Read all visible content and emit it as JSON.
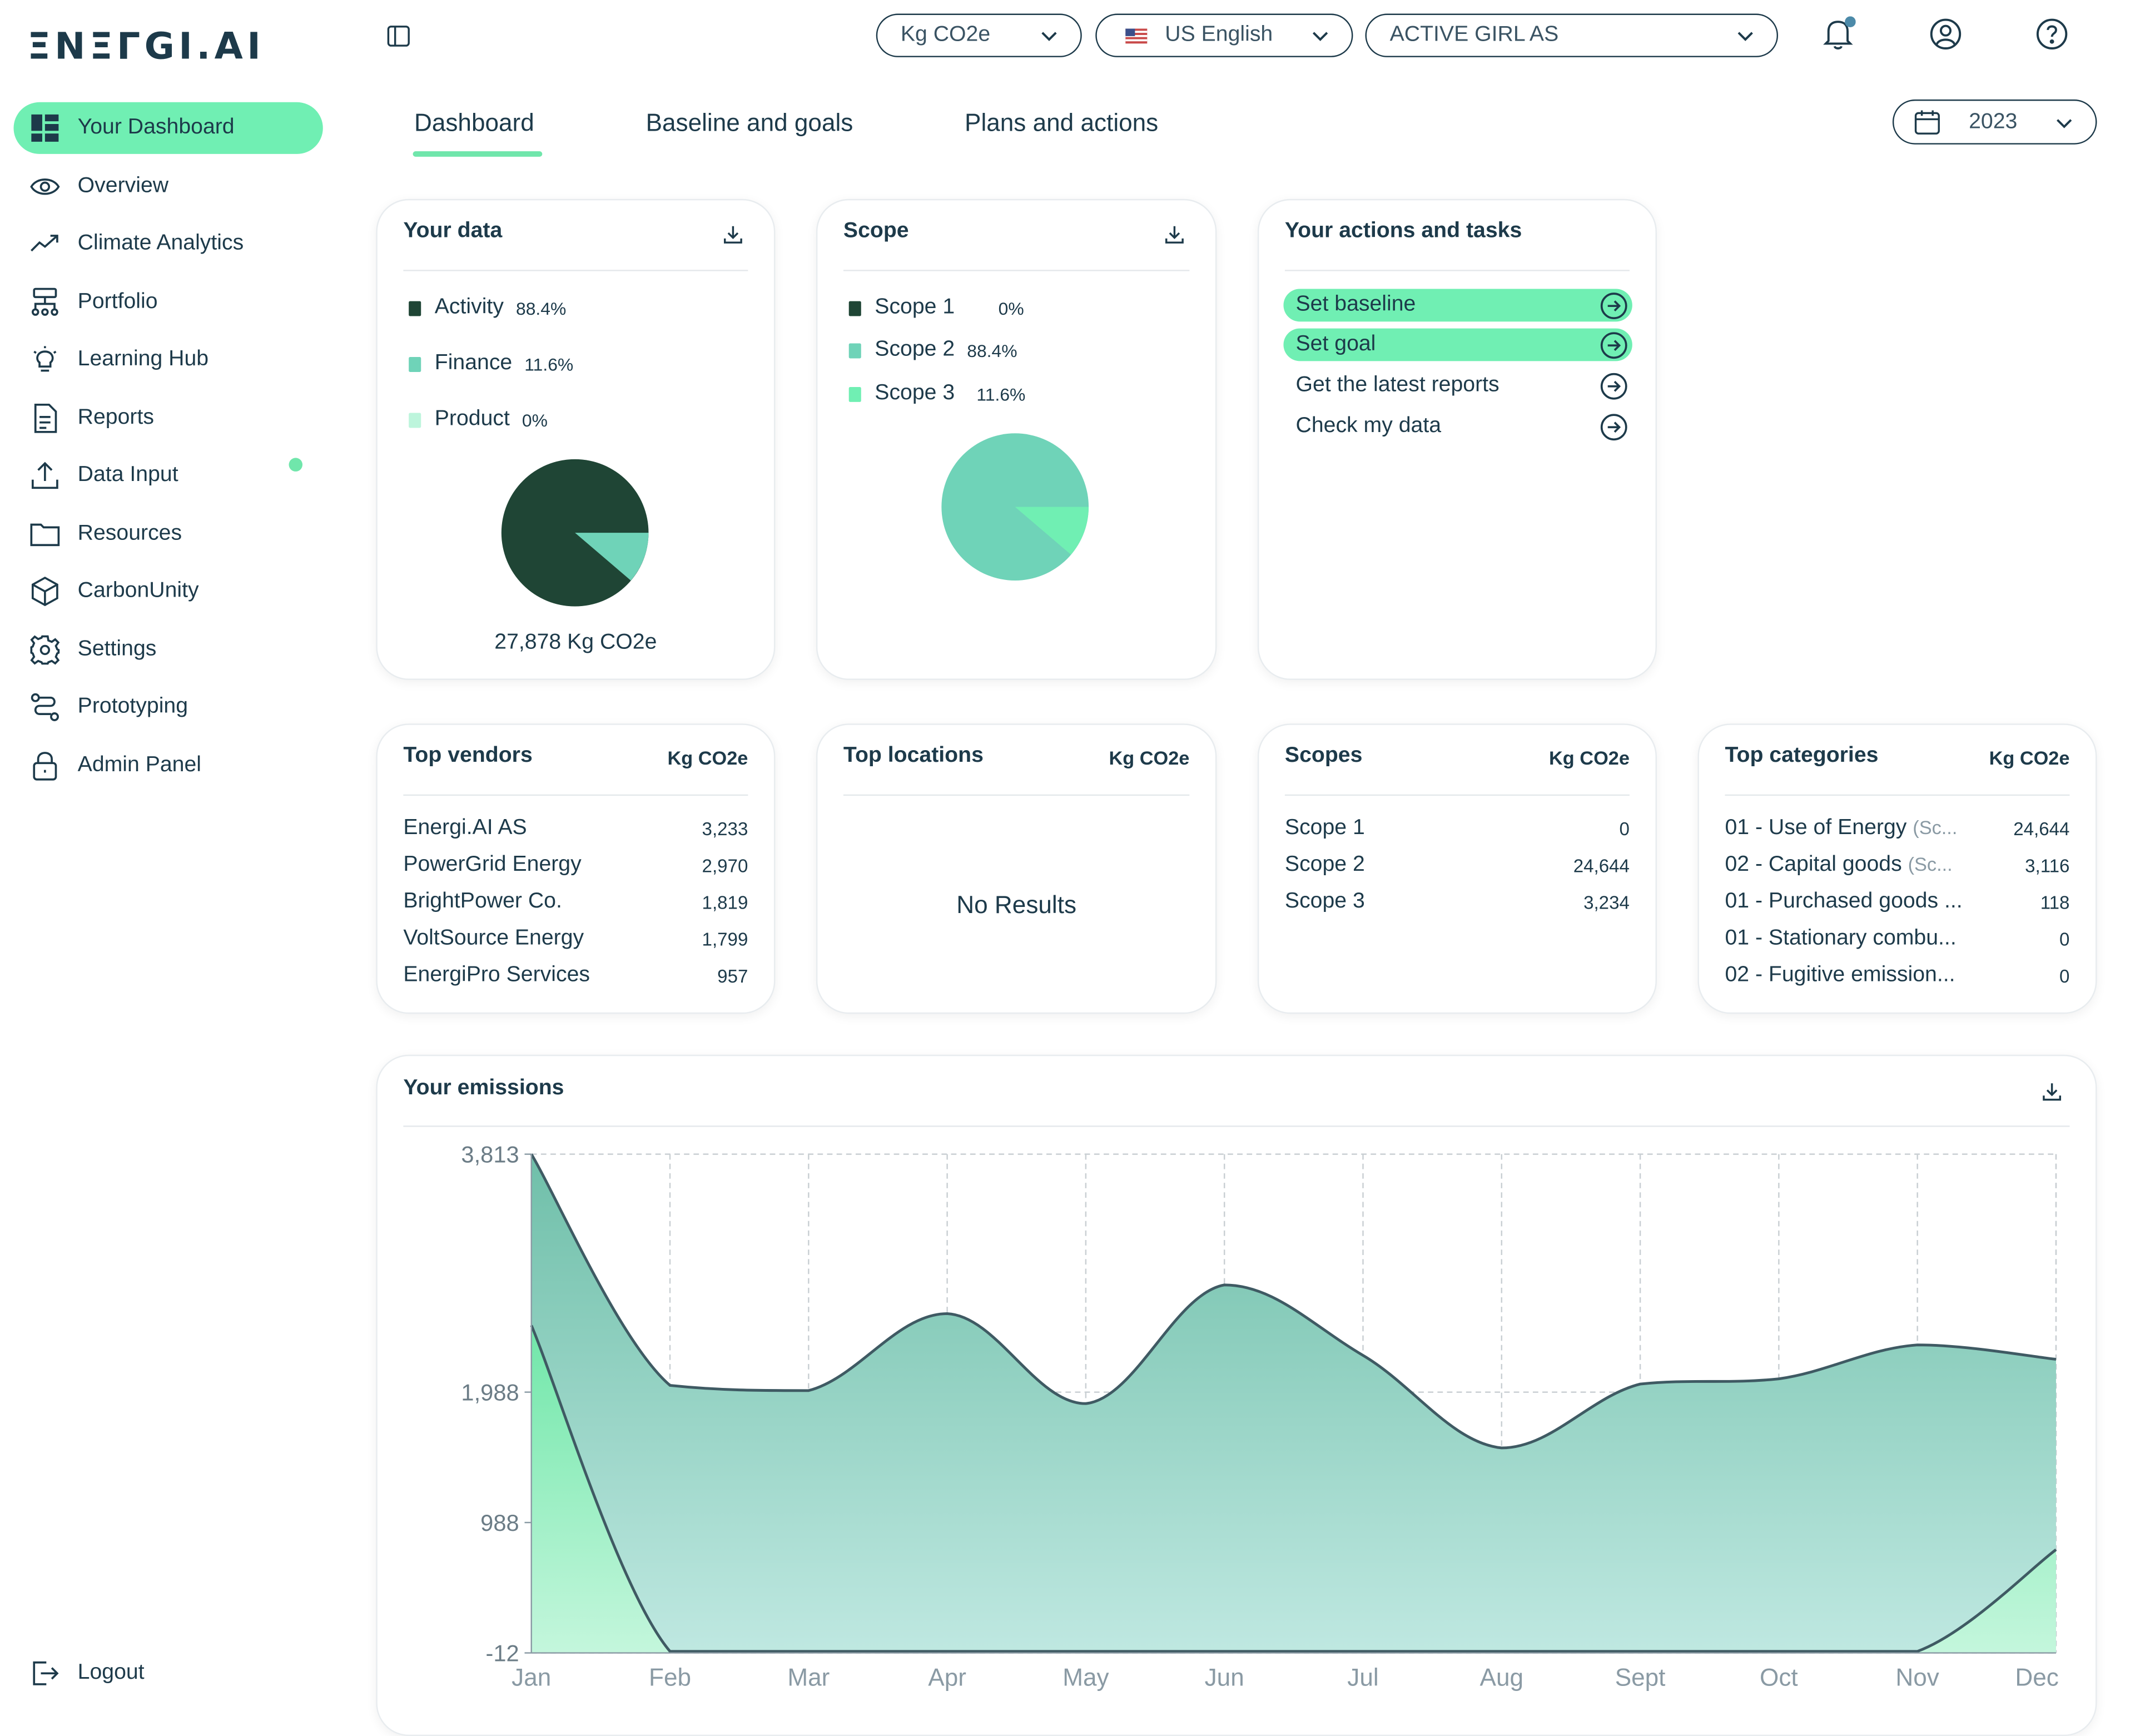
{
  "brand": {
    "logo_text": "ΞNΞΓGI.AI"
  },
  "sidebar": {
    "items": [
      {
        "label": "Your Dashboard",
        "icon": "dashboard-icon",
        "active": true
      },
      {
        "label": "Overview",
        "icon": "eye-icon"
      },
      {
        "label": "Climate Analytics",
        "icon": "trend-icon"
      },
      {
        "label": "Portfolio",
        "icon": "hierarchy-icon"
      },
      {
        "label": "Learning Hub",
        "icon": "lightbulb-icon"
      },
      {
        "label": "Reports",
        "icon": "document-icon"
      },
      {
        "label": "Data Input",
        "icon": "upload-icon"
      },
      {
        "label": "Resources",
        "icon": "folder-icon"
      },
      {
        "label": "CarbonUnity",
        "icon": "cube-icon"
      },
      {
        "label": "Settings",
        "icon": "gear-icon"
      },
      {
        "label": "Prototyping",
        "icon": "route-icon"
      },
      {
        "label": "Admin Panel",
        "icon": "lock-icon"
      }
    ],
    "logout_label": "Logout"
  },
  "topbar": {
    "unit_select": "Kg CO2e",
    "language_select": "US English",
    "company_select": "ACTIVE GIRL AS",
    "year_select": "2023"
  },
  "tabs": [
    {
      "label": "Dashboard",
      "active": true
    },
    {
      "label": "Baseline and goals"
    },
    {
      "label": "Plans and actions"
    }
  ],
  "your_data": {
    "title": "Your data",
    "legend": [
      {
        "label": "Activity",
        "pct": "88.4%",
        "color": "#1f4535"
      },
      {
        "label": "Finance",
        "pct": "11.6%",
        "color": "#6fd3b8"
      },
      {
        "label": "Product",
        "pct": "0%",
        "color": "#bdf5dc"
      }
    ],
    "total": "27,878 Kg CO2e"
  },
  "scope_card": {
    "title": "Scope",
    "legend": [
      {
        "label": "Scope 1",
        "pct": "0%",
        "color": "#1f4535"
      },
      {
        "label": "Scope 2",
        "pct": "88.4%",
        "color": "#6fd3b8"
      },
      {
        "label": "Scope 3",
        "pct": "11.6%",
        "color": "#70efb3"
      }
    ]
  },
  "actions": {
    "title": "Your actions and tasks",
    "items": [
      {
        "label": "Set baseline",
        "highlight": true
      },
      {
        "label": "Set goal",
        "highlight": true
      },
      {
        "label": "Get the latest reports",
        "highlight": false
      },
      {
        "label": "Check my data",
        "highlight": false
      }
    ]
  },
  "top_vendors": {
    "title": "Top vendors",
    "unit": "Kg CO2e",
    "rows": [
      {
        "name": "Energi.AI AS",
        "value": "3,233"
      },
      {
        "name": "PowerGrid Energy",
        "value": "2,970"
      },
      {
        "name": "BrightPower Co.",
        "value": "1,819"
      },
      {
        "name": "VoltSource Energy",
        "value": "1,799"
      },
      {
        "name": "EnergiPro Services",
        "value": "957"
      }
    ]
  },
  "top_locations": {
    "title": "Top locations",
    "unit": "Kg CO2e",
    "empty": "No Results"
  },
  "scopes": {
    "title": "Scopes",
    "unit": "Kg CO2e",
    "rows": [
      {
        "name": "Scope 1",
        "value": "0"
      },
      {
        "name": "Scope 2",
        "value": "24,644"
      },
      {
        "name": "Scope 3",
        "value": "3,234"
      }
    ]
  },
  "top_categories": {
    "title": "Top categories",
    "unit": "Kg CO2e",
    "rows": [
      {
        "name": "01 - Use of Energy",
        "sub": "(Sc...",
        "value": "24,644"
      },
      {
        "name": "02 - Capital goods",
        "sub": "(Sc...",
        "value": "3,116"
      },
      {
        "name": "01 - Purchased goods ...",
        "sub": "",
        "value": "118"
      },
      {
        "name": "01 - Stationary combu...",
        "sub": "",
        "value": "0"
      },
      {
        "name": "02 - Fugitive emission...",
        "sub": "",
        "value": "0"
      }
    ]
  },
  "emissions": {
    "title": "Your emissions"
  },
  "chart_data": {
    "type": "area",
    "categories": [
      "Jan",
      "Feb",
      "Mar",
      "Apr",
      "May",
      "Jun",
      "Jul",
      "Aug",
      "Sept",
      "Oct",
      "Nov",
      "Dec"
    ],
    "y_ticks": [
      "3,813",
      "1,988",
      "988",
      "-12"
    ],
    "y_tick_values": [
      3813,
      1988,
      988,
      -12
    ],
    "ylim": [
      -12,
      3813
    ],
    "grid": true,
    "series": [
      {
        "values": [
          3813,
          2040,
          2000,
          2590,
          1900,
          2810,
          2270,
          1560,
          2050,
          2090,
          2350,
          2240
        ],
        "color": "#7fcdb8"
      },
      {
        "values": [
          2500,
          0,
          0,
          0,
          0,
          0,
          0,
          0,
          0,
          0,
          0,
          780
        ],
        "color": "#8ff0c3"
      }
    ]
  }
}
